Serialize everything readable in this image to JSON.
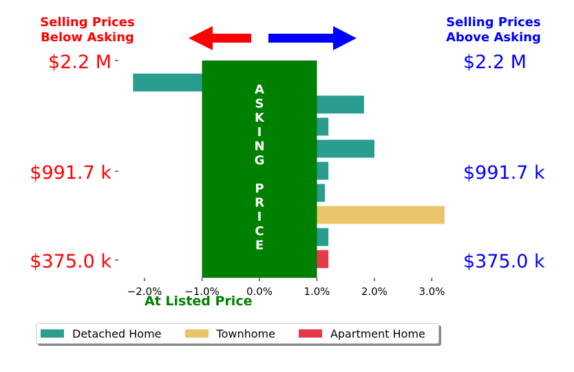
{
  "headers": {
    "left": [
      "Selling Prices",
      "Below Asking"
    ],
    "right": [
      "Selling Prices",
      "Above Asking"
    ],
    "left_color": "#ff0000",
    "right_color": "#0000ff"
  },
  "price_labels": [
    "$2.2 M",
    "$991.7 k",
    "$375.0 k"
  ],
  "band": {
    "color": "#008000",
    "word1": [
      "A",
      "S",
      "K",
      "I",
      "N",
      "G"
    ],
    "word2": [
      "P",
      "R",
      "I",
      "C",
      "E"
    ],
    "x_range": [
      -1.0,
      1.0
    ]
  },
  "xlabel": "At Listed Price",
  "legend": [
    {
      "label": "Detached Home",
      "color": "#2a9d8f"
    },
    {
      "label": "Townhome",
      "color": "#e9c46a"
    },
    {
      "label": "Apartment Home",
      "color": "#e63946"
    }
  ],
  "chart_data": {
    "type": "bar",
    "orientation": "horizontal",
    "xlim": [
      -2.2,
      3.2
    ],
    "xticks": [
      -2.0,
      -1.0,
      0.0,
      1.0,
      2.0,
      3.0
    ],
    "xtick_labels": [
      "−2.0%",
      "−1.0%",
      "0.0%",
      "1.0%",
      "2.0%",
      "3.0%"
    ],
    "yticks": [
      "$2.2 M",
      "$991.7 k",
      "$375.0 k"
    ],
    "bars": [
      {
        "value": -2.2,
        "type": "Detached Home"
      },
      {
        "value": 1.82,
        "type": "Detached Home"
      },
      {
        "value": 1.2,
        "type": "Detached Home"
      },
      {
        "value": 2.0,
        "type": "Detached Home"
      },
      {
        "value": 1.2,
        "type": "Detached Home"
      },
      {
        "value": 1.14,
        "type": "Detached Home"
      },
      {
        "value": 3.22,
        "type": "Townhome"
      },
      {
        "value": 1.2,
        "type": "Detached Home"
      },
      {
        "value": 1.2,
        "type": "Apartment Home"
      }
    ]
  }
}
